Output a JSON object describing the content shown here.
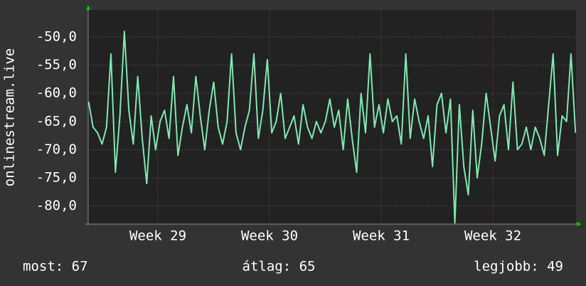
{
  "chart_data": {
    "type": "line",
    "y_label": "onlinestream.live",
    "x": [
      28.38,
      28.42,
      28.46,
      28.5,
      28.54,
      28.58,
      28.62,
      28.66,
      28.7,
      28.74,
      28.78,
      28.82,
      28.86,
      28.9,
      28.94,
      28.98,
      29.02,
      29.06,
      29.1,
      29.14,
      29.18,
      29.22,
      29.26,
      29.3,
      29.34,
      29.38,
      29.42,
      29.46,
      29.5,
      29.54,
      29.58,
      29.62,
      29.66,
      29.7,
      29.74,
      29.78,
      29.82,
      29.86,
      29.9,
      29.94,
      29.98,
      30.02,
      30.06,
      30.1,
      30.14,
      30.18,
      30.22,
      30.26,
      30.3,
      30.34,
      30.38,
      30.42,
      30.46,
      30.5,
      30.54,
      30.58,
      30.62,
      30.66,
      30.7,
      30.74,
      30.78,
      30.82,
      30.86,
      30.9,
      30.94,
      30.98,
      31.02,
      31.06,
      31.1,
      31.14,
      31.18,
      31.22,
      31.26,
      31.3,
      31.34,
      31.38,
      31.42,
      31.46,
      31.5,
      31.54,
      31.58,
      31.62,
      31.66,
      31.7,
      31.74,
      31.78,
      31.82,
      31.86,
      31.9,
      31.94,
      31.98,
      32.02,
      32.06,
      32.1,
      32.14,
      32.18,
      32.22,
      32.26,
      32.3,
      32.34,
      32.38,
      32.42,
      32.46,
      32.5,
      32.54,
      32.58,
      32.62,
      32.66,
      32.7,
      32.74
    ],
    "series": [
      {
        "color": "#7ee8b0",
        "values": [
          -61.5,
          -66,
          -67,
          -69,
          -66,
          -53,
          -74,
          -64,
          -49,
          -63,
          -69,
          -57,
          -68,
          -76,
          -64,
          -70,
          -65,
          -63,
          -68,
          -57,
          -71,
          -66,
          -62,
          -67,
          -57,
          -64,
          -70,
          -63,
          -58,
          -66,
          -69,
          -65,
          -53,
          -67,
          -70,
          -66,
          -63,
          -53,
          -68,
          -63,
          -54,
          -67,
          -65,
          -60,
          -68,
          -66,
          -64,
          -69,
          -62,
          -66,
          -68,
          -65,
          -67,
          -65,
          -61,
          -66,
          -63,
          -70,
          -61,
          -68,
          -74,
          -60,
          -67,
          -53,
          -66,
          -62,
          -67,
          -61,
          -65,
          -64,
          -69,
          -53,
          -68,
          -61,
          -65,
          -68,
          -64,
          -73,
          -62,
          -60,
          -67,
          -61,
          -83,
          -62,
          -73,
          -78,
          -63,
          -75,
          -69,
          -60,
          -66,
          -72,
          -64,
          -62,
          -70,
          -58,
          -70,
          -69,
          -66,
          -70,
          -66,
          -68,
          -71,
          -62,
          -53,
          -71,
          -64,
          -65,
          -53,
          -67
        ]
      }
    ],
    "xlim": [
      28.376,
      32.745
    ],
    "xticks": [
      {
        "value": 29,
        "label": "Week 29"
      },
      {
        "value": 30,
        "label": "Week 30"
      },
      {
        "value": 31,
        "label": "Week 31"
      },
      {
        "value": 32,
        "label": "Week 32"
      }
    ],
    "ylim": [
      -83.2,
      -45.2
    ],
    "yticks": [
      {
        "value": -50,
        "label": "-50,0"
      },
      {
        "value": -55,
        "label": "-55,0"
      },
      {
        "value": -60,
        "label": "-60,0"
      },
      {
        "value": -65,
        "label": "-65,0"
      },
      {
        "value": -70,
        "label": "-70,0"
      },
      {
        "value": -75,
        "label": "-75,0"
      },
      {
        "value": -80,
        "label": "-80,0"
      }
    ],
    "grid": true,
    "footer": [
      "most: 67",
      "átlag: 65",
      "legjobb: 49"
    ]
  }
}
